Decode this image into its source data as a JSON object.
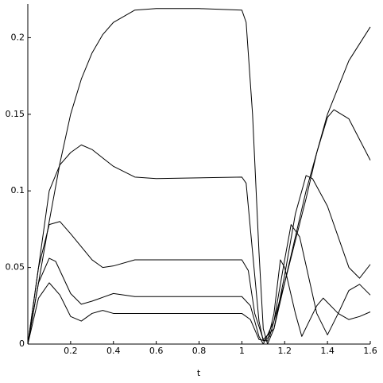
{
  "chart_data": {
    "type": "line",
    "x_label": "t",
    "xlim": [
      0,
      1.6
    ],
    "ylim": [
      0,
      0.222
    ],
    "xticks": [
      0.2,
      0.4,
      0.6,
      0.8,
      1,
      1.2,
      1.4,
      1.6
    ],
    "yticks": [
      0,
      0.05,
      0.1,
      0.15,
      0.2
    ],
    "series": [
      {
        "color": "#000000",
        "x": [
          0,
          0.05,
          0.1,
          0.15,
          0.2,
          0.25,
          0.3,
          0.35,
          0.4,
          0.5,
          0.6,
          0.8,
          1.0,
          1.02,
          1.05,
          1.08,
          1.1,
          1.12,
          1.15,
          1.2,
          1.3,
          1.4,
          1.5,
          1.6
        ],
        "values": [
          0,
          0.04,
          0.08,
          0.118,
          0.15,
          0.173,
          0.19,
          0.202,
          0.21,
          0.218,
          0.219,
          0.219,
          0.218,
          0.21,
          0.15,
          0.06,
          0.01,
          0.0,
          0.01,
          0.04,
          0.1,
          0.15,
          0.185,
          0.207
        ]
      },
      {
        "color": "#000000",
        "x": [
          0,
          0.05,
          0.1,
          0.15,
          0.2,
          0.25,
          0.3,
          0.4,
          0.5,
          0.6,
          1.0,
          1.02,
          1.05,
          1.08,
          1.1,
          1.13,
          1.2,
          1.3,
          1.35,
          1.4,
          1.43,
          1.5,
          1.6
        ],
        "values": [
          0,
          0.05,
          0.1,
          0.117,
          0.125,
          0.13,
          0.127,
          0.116,
          0.109,
          0.108,
          0.109,
          0.105,
          0.06,
          0.015,
          0.002,
          0.005,
          0.04,
          0.095,
          0.125,
          0.148,
          0.153,
          0.147,
          0.12
        ]
      },
      {
        "color": "#000000",
        "x": [
          0,
          0.05,
          0.1,
          0.15,
          0.2,
          0.3,
          0.35,
          0.4,
          0.5,
          0.6,
          1.0,
          1.03,
          1.06,
          1.1,
          1.15,
          1.2,
          1.25,
          1.3,
          1.33,
          1.4,
          1.5,
          1.55,
          1.6
        ],
        "values": [
          0,
          0.05,
          0.078,
          0.08,
          0.072,
          0.055,
          0.05,
          0.051,
          0.055,
          0.055,
          0.055,
          0.048,
          0.02,
          0.003,
          0.01,
          0.045,
          0.085,
          0.11,
          0.108,
          0.09,
          0.05,
          0.043,
          0.052
        ]
      },
      {
        "color": "#000000",
        "x": [
          0,
          0.05,
          0.1,
          0.13,
          0.2,
          0.25,
          0.3,
          0.4,
          0.5,
          0.6,
          1.0,
          1.04,
          1.08,
          1.1,
          1.15,
          1.2,
          1.23,
          1.27,
          1.35,
          1.4,
          1.45,
          1.5,
          1.55,
          1.6
        ],
        "values": [
          0,
          0.04,
          0.056,
          0.054,
          0.033,
          0.026,
          0.028,
          0.033,
          0.031,
          0.031,
          0.031,
          0.025,
          0.005,
          0.0,
          0.015,
          0.055,
          0.078,
          0.07,
          0.02,
          0.006,
          0.02,
          0.035,
          0.039,
          0.032
        ]
      },
      {
        "color": "#000000",
        "x": [
          0,
          0.05,
          0.1,
          0.15,
          0.2,
          0.25,
          0.3,
          0.35,
          0.4,
          0.5,
          1.0,
          1.04,
          1.08,
          1.12,
          1.15,
          1.18,
          1.2,
          1.25,
          1.28,
          1.35,
          1.38,
          1.45,
          1.5,
          1.55,
          1.6
        ],
        "values": [
          0,
          0.03,
          0.04,
          0.032,
          0.018,
          0.015,
          0.02,
          0.022,
          0.02,
          0.02,
          0.02,
          0.016,
          0.003,
          0.002,
          0.02,
          0.055,
          0.05,
          0.02,
          0.005,
          0.025,
          0.03,
          0.02,
          0.016,
          0.018,
          0.021
        ]
      }
    ]
  }
}
